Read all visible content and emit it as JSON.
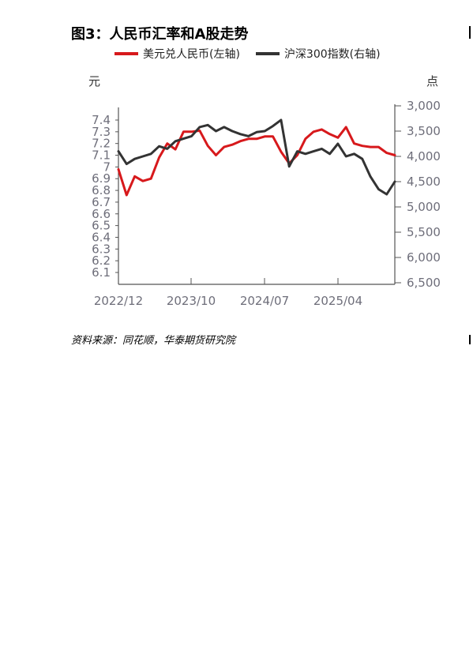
{
  "figure": {
    "title": "图3：人民币汇率和A股走势",
    "left_unit": "元",
    "right_unit": "点",
    "source": "资料来源：同花顺，华泰期货研究院"
  },
  "chart_data": {
    "type": "line",
    "title": "图3：人民币汇率和A股走势",
    "x_tick_labels": [
      "2022/12",
      "2023/10",
      "2024/07",
      "2025/04"
    ],
    "y_left": {
      "label": "元",
      "ticks": [
        "7.4",
        "7.3",
        "7.2",
        "7.1",
        "7",
        "6.9",
        "6.8",
        "6.7",
        "6.6",
        "6.5",
        "6.4",
        "6.3",
        "6.2",
        "6.1"
      ],
      "range": [
        6.05,
        7.45
      ]
    },
    "y_right": {
      "label": "点",
      "inverted": true,
      "ticks": [
        "3,000",
        "3,500",
        "4,000",
        "4,500",
        "5,000",
        "5,500",
        "6,000",
        "6,500"
      ],
      "range": [
        3000,
        6500
      ]
    },
    "grid": false,
    "legend_position": "top",
    "series": [
      {
        "name": "美元兑人民币(左轴)",
        "axis": "left",
        "color": "#d7191c",
        "x": [
          "2022/12",
          "2023/01",
          "2023/02",
          "2023/03",
          "2023/04",
          "2023/05",
          "2023/06",
          "2023/07",
          "2023/08",
          "2023/09",
          "2023/10",
          "2023/11",
          "2023/12",
          "2024/01",
          "2024/02",
          "2024/03",
          "2024/04",
          "2024/05",
          "2024/06",
          "2024/07",
          "2024/08",
          "2024/09",
          "2024/10",
          "2024/11",
          "2024/12",
          "2025/01",
          "2025/02",
          "2025/03",
          "2025/04",
          "2025/05",
          "2025/06",
          "2025/07",
          "2025/08",
          "2025/09",
          "2025/10"
        ],
        "values": [
          6.98,
          6.76,
          6.92,
          6.88,
          6.9,
          7.08,
          7.2,
          7.15,
          7.3,
          7.3,
          7.31,
          7.18,
          7.1,
          7.17,
          7.19,
          7.22,
          7.24,
          7.24,
          7.26,
          7.26,
          7.13,
          7.03,
          7.1,
          7.24,
          7.3,
          7.32,
          7.28,
          7.25,
          7.34,
          7.2,
          7.18,
          7.17,
          7.17,
          7.12,
          7.1
        ]
      },
      {
        "name": "沪深300指数(右轴)",
        "axis": "right",
        "color": "#333333",
        "x": [
          "2022/12",
          "2023/01",
          "2023/02",
          "2023/03",
          "2023/04",
          "2023/05",
          "2023/06",
          "2023/07",
          "2023/08",
          "2023/09",
          "2023/10",
          "2023/11",
          "2023/12",
          "2024/01",
          "2024/02",
          "2024/03",
          "2024/04",
          "2024/05",
          "2024/06",
          "2024/07",
          "2024/08",
          "2024/09",
          "2024/10",
          "2024/11",
          "2024/12",
          "2025/01",
          "2025/02",
          "2025/03",
          "2025/04",
          "2025/05",
          "2025/06",
          "2025/07",
          "2025/08",
          "2025/09",
          "2025/10"
        ],
        "values": [
          3900,
          4150,
          4050,
          4000,
          3950,
          3800,
          3850,
          3700,
          3650,
          3600,
          3420,
          3380,
          3500,
          3420,
          3500,
          3560,
          3600,
          3520,
          3500,
          3400,
          3280,
          4200,
          3900,
          3950,
          3900,
          3850,
          3950,
          3750,
          4000,
          3950,
          4050,
          4400,
          4650,
          4750,
          4500
        ]
      }
    ]
  }
}
